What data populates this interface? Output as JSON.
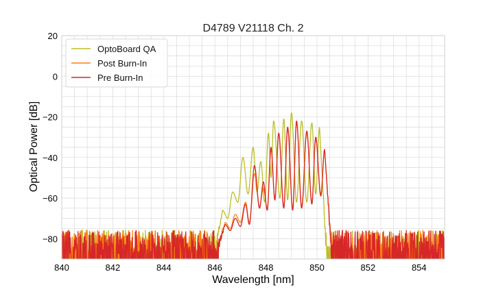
{
  "chart_data": {
    "type": "line",
    "title": "D4789 V21118 Ch. 2",
    "xlabel": "Wavelength [nm]",
    "ylabel": "Optical Power [dB]",
    "xlim": [
      840,
      855
    ],
    "ylim": [
      -90,
      20
    ],
    "xticks": [
      840,
      842,
      844,
      846,
      848,
      850,
      852,
      854
    ],
    "yticks": [
      20,
      0,
      -20,
      -40,
      -60,
      -80
    ],
    "grid": true,
    "legend_position": "top-left",
    "noise_floor_dB": -83,
    "series": [
      {
        "name": "OptoBoard QA",
        "color": "#bcbd22",
        "envelope": [
          [
            846.2,
            -67
          ],
          [
            846.5,
            -64
          ],
          [
            847.0,
            -55
          ],
          [
            847.5,
            -38
          ],
          [
            848.0,
            -28
          ],
          [
            848.5,
            -21
          ],
          [
            849.0,
            -19
          ],
          [
            849.5,
            -21
          ],
          [
            850.0,
            -24
          ],
          [
            850.4,
            -40
          ],
          [
            850.8,
            -60
          ],
          [
            851.0,
            -70
          ]
        ],
        "peaks": [
          [
            846.3,
            -66
          ],
          [
            846.7,
            -57
          ],
          [
            847.1,
            -40
          ],
          [
            847.5,
            -35
          ],
          [
            847.8,
            -42
          ],
          [
            848.1,
            -28
          ],
          [
            848.3,
            -22
          ],
          [
            848.7,
            -21
          ],
          [
            849.0,
            -18
          ],
          [
            849.4,
            -22
          ],
          [
            849.8,
            -23
          ],
          [
            850.1,
            -25
          ]
        ],
        "valleys": [
          [
            846.5,
            -70
          ],
          [
            846.9,
            -62
          ],
          [
            847.3,
            -58
          ],
          [
            847.65,
            -57
          ],
          [
            847.95,
            -62
          ],
          [
            848.2,
            -50
          ],
          [
            848.55,
            -60
          ],
          [
            848.85,
            -61
          ],
          [
            849.2,
            -62
          ],
          [
            849.6,
            -62
          ],
          [
            849.95,
            -58
          ]
        ]
      },
      {
        "name": "Post Burn-In",
        "color": "#ff7f0e",
        "envelope": [
          [
            846.2,
            -72
          ],
          [
            846.8,
            -70
          ],
          [
            847.2,
            -62
          ],
          [
            847.6,
            -48
          ],
          [
            848.0,
            -40
          ],
          [
            848.4,
            -28
          ],
          [
            848.8,
            -26
          ],
          [
            849.2,
            -25
          ],
          [
            849.6,
            -28
          ],
          [
            850.0,
            -32
          ],
          [
            850.3,
            -50
          ],
          [
            850.5,
            -72
          ]
        ],
        "peaks": [
          [
            846.4,
            -72
          ],
          [
            846.8,
            -68
          ],
          [
            847.2,
            -62
          ],
          [
            847.55,
            -48
          ],
          [
            847.9,
            -55
          ],
          [
            848.2,
            -36
          ],
          [
            848.5,
            -28
          ],
          [
            848.85,
            -26
          ],
          [
            849.2,
            -23
          ],
          [
            849.6,
            -28
          ],
          [
            849.95,
            -31
          ],
          [
            850.3,
            -36
          ]
        ],
        "valleys": [
          [
            846.6,
            -75
          ],
          [
            847.0,
            -72
          ],
          [
            847.35,
            -72
          ],
          [
            847.75,
            -64
          ],
          [
            848.05,
            -65
          ],
          [
            848.35,
            -60
          ],
          [
            848.7,
            -64
          ],
          [
            849.05,
            -65
          ],
          [
            849.4,
            -64
          ],
          [
            849.8,
            -62
          ],
          [
            850.15,
            -58
          ]
        ]
      },
      {
        "name": "Pre Burn-In",
        "color": "#d62728",
        "envelope": [
          [
            846.2,
            -72
          ],
          [
            846.8,
            -71
          ],
          [
            847.2,
            -63
          ],
          [
            847.6,
            -46
          ],
          [
            848.0,
            -38
          ],
          [
            848.4,
            -28
          ],
          [
            848.8,
            -25
          ],
          [
            849.2,
            -23
          ],
          [
            849.6,
            -27
          ],
          [
            850.0,
            -31
          ],
          [
            850.3,
            -48
          ],
          [
            850.5,
            -72
          ]
        ],
        "peaks": [
          [
            846.4,
            -73
          ],
          [
            846.8,
            -70
          ],
          [
            847.2,
            -63
          ],
          [
            847.55,
            -44
          ],
          [
            847.9,
            -52
          ],
          [
            848.2,
            -35
          ],
          [
            848.5,
            -28
          ],
          [
            848.85,
            -25
          ],
          [
            849.2,
            -22
          ],
          [
            849.6,
            -27
          ],
          [
            849.95,
            -30
          ],
          [
            850.3,
            -36
          ]
        ],
        "valleys": [
          [
            846.6,
            -76
          ],
          [
            847.0,
            -74
          ],
          [
            847.35,
            -73
          ],
          [
            847.75,
            -65
          ],
          [
            848.05,
            -66
          ],
          [
            848.35,
            -61
          ],
          [
            848.7,
            -65
          ],
          [
            849.05,
            -66
          ],
          [
            849.4,
            -65
          ],
          [
            849.8,
            -63
          ],
          [
            850.15,
            -59
          ]
        ]
      }
    ]
  }
}
